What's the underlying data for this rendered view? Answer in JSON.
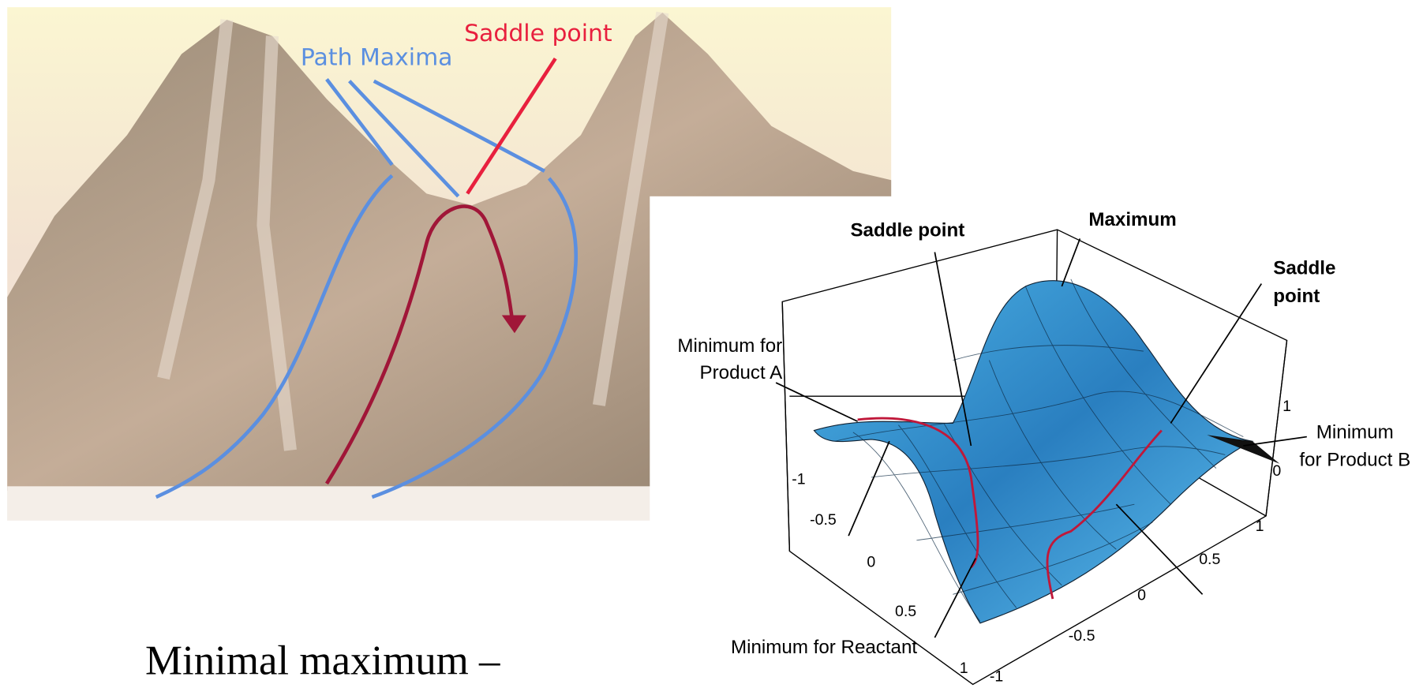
{
  "mountain": {
    "path_maxima": "Path Maxima",
    "saddle_point": "Saddle point"
  },
  "surface": {
    "saddle_point_left": "Saddle point",
    "maximum": "Maximum",
    "saddle_point_right": [
      "Saddle",
      "point"
    ],
    "minimum_product_a": [
      "Minimum for",
      "Product A"
    ],
    "minimum_product_b": [
      "Minimum",
      "for Product B"
    ],
    "minimum_reactant": "Minimum for Reactant",
    "left_axis_ticks": [
      -1,
      -0.5,
      0,
      0.5,
      1
    ],
    "bottom_axis_ticks": [
      -1,
      -0.5,
      0,
      0.5,
      1
    ],
    "vertical_axis_ticks": [
      1,
      0
    ]
  },
  "caption": "Minimal maximum –"
}
